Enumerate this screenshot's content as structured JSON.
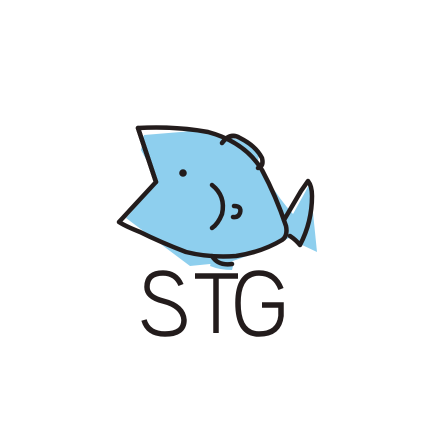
{
  "logo": {
    "wordmark": "STG",
    "icon": "fish-icon",
    "colors": {
      "background": "#ffffff",
      "fish_fill": "#8ecfee",
      "outline": "#231c1c"
    }
  }
}
